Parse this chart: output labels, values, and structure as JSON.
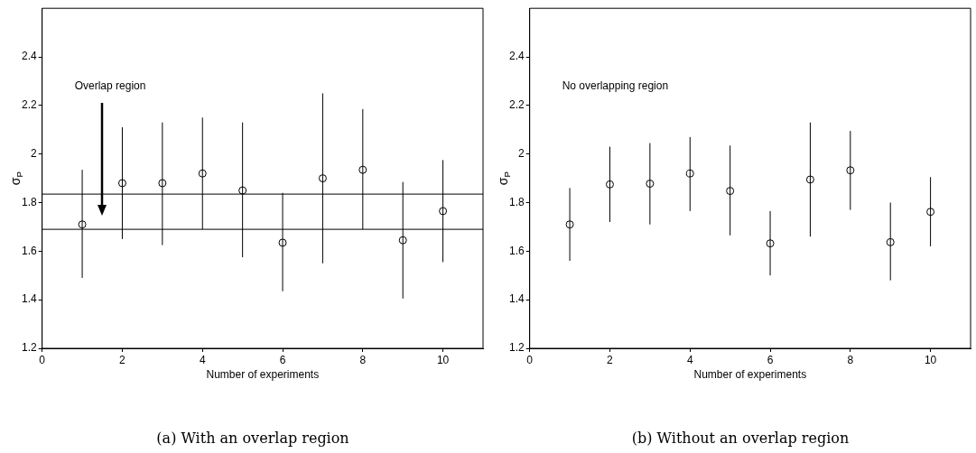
{
  "chart_data": [
    {
      "type": "scatter",
      "title": "(a) With an overlap region",
      "xlabel": "Number of experiments",
      "ylabel": "σ$_{P}$",
      "x": [
        1,
        2,
        3,
        4,
        5,
        6,
        7,
        8,
        9,
        10
      ],
      "xlim": [
        0,
        11
      ],
      "xticks": [
        0,
        2,
        4,
        6,
        8,
        10
      ],
      "ylim": [
        1.2,
        2.6
      ],
      "yticks": [
        1.2,
        1.4,
        1.6,
        1.8,
        2,
        2.2,
        2.4
      ],
      "marker": "circle",
      "grid": false,
      "legend": false,
      "series": [
        {
          "color": "#000000",
          "values": [
            1.71,
            1.88,
            1.88,
            1.92,
            1.85,
            1.635,
            1.9,
            1.935,
            1.645,
            1.765
          ],
          "errors": [
            [
              1.49,
              1.935
            ],
            [
              1.65,
              2.11
            ],
            [
              1.625,
              2.13
            ],
            [
              1.69,
              2.15
            ],
            [
              1.575,
              2.13
            ],
            [
              1.435,
              1.84
            ],
            [
              1.55,
              2.25
            ],
            [
              1.69,
              2.185
            ],
            [
              1.405,
              1.885
            ],
            [
              1.555,
              1.975
            ]
          ]
        }
      ],
      "ref_lines": [
        {
          "axis": "y",
          "value": 1.835,
          "color": "#000000"
        },
        {
          "axis": "y",
          "value": 1.69,
          "color": "#000000"
        }
      ],
      "annotations": [
        "Overlap region"
      ]
    },
    {
      "type": "scatter",
      "title": "(b) Without an overlap region",
      "xlabel": "Number of experiments",
      "ylabel": "σ$_{P}$",
      "x": [
        1,
        2,
        3,
        4,
        5,
        6,
        7,
        8,
        9,
        10
      ],
      "xlim": [
        0,
        11
      ],
      "xticks": [
        0,
        2,
        4,
        6,
        8,
        10
      ],
      "ylim": [
        1.2,
        2.6
      ],
      "yticks": [
        1.2,
        1.4,
        1.6,
        1.8,
        2,
        2.2,
        2.4
      ],
      "marker": "circle",
      "grid": false,
      "legend": false,
      "series": [
        {
          "color": "#000000",
          "values": [
            1.71,
            1.875,
            1.878,
            1.92,
            1.848,
            1.632,
            1.895,
            1.933,
            1.637,
            1.762
          ],
          "errors": [
            [
              1.56,
              1.86
            ],
            [
              1.72,
              2.03
            ],
            [
              1.71,
              2.045
            ],
            [
              1.765,
              2.07
            ],
            [
              1.665,
              2.035
            ],
            [
              1.5,
              1.765
            ],
            [
              1.66,
              2.13
            ],
            [
              1.77,
              2.095
            ],
            [
              1.48,
              1.8
            ],
            [
              1.62,
              1.905
            ]
          ]
        }
      ],
      "annotations": [
        "No overlapping region"
      ]
    }
  ]
}
